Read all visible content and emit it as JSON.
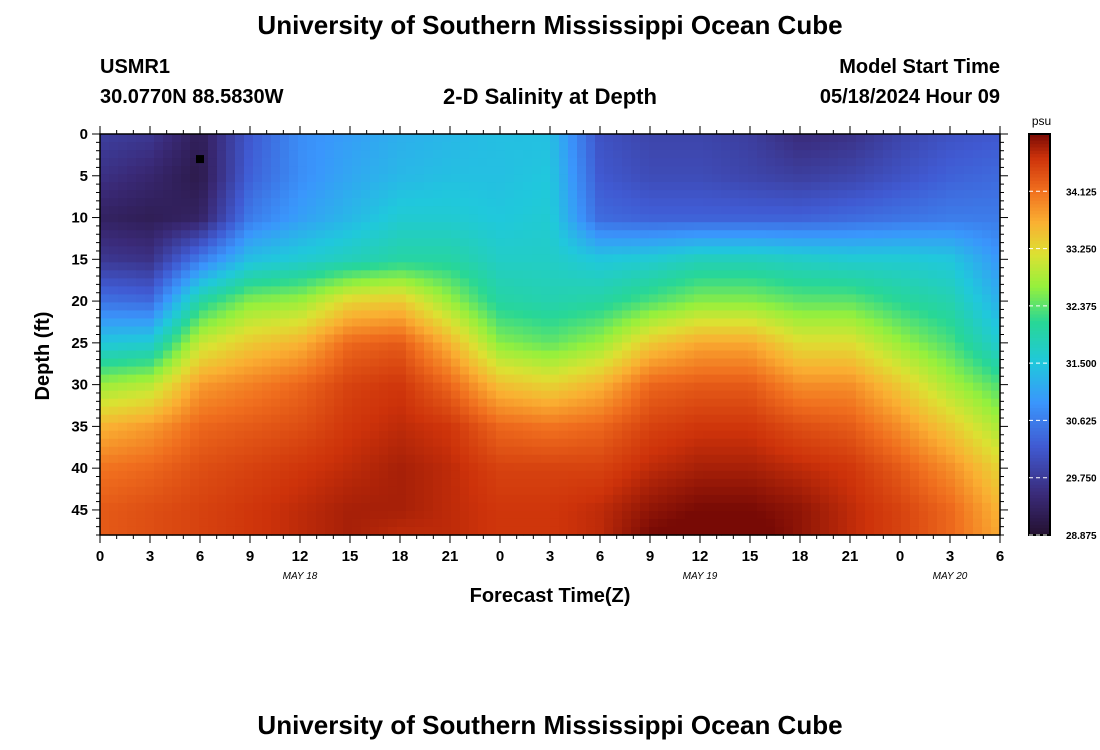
{
  "header": {
    "title": "University of Southern Mississippi Ocean Cube",
    "station": "USMR1",
    "coords": "30.0770N  88.5830W",
    "plot_title": "2-D Salinity at Depth",
    "model_start_label": "Model Start Time",
    "model_start_value": "05/18/2024 Hour 09",
    "footer_title": "University of Southern Mississippi Ocean Cube"
  },
  "chart_data": {
    "type": "heatmap",
    "title": "2-D Salinity at Depth",
    "xlabel": "Forecast Time(Z)",
    "ylabel": "Depth (ft)",
    "x_hours_range": [
      0,
      54
    ],
    "x_tick_labels": [
      "0",
      "3",
      "6",
      "9",
      "12",
      "15",
      "18",
      "21",
      "0",
      "3",
      "6",
      "9",
      "12",
      "15",
      "18",
      "21",
      "0",
      "3",
      "6"
    ],
    "x_date_labels": [
      {
        "label": "MAY 18",
        "hour": 12
      },
      {
        "label": "MAY 19",
        "hour": 36
      },
      {
        "label": "MAY 20",
        "hour": 51
      }
    ],
    "y_range": [
      0,
      48
    ],
    "y_ticks": [
      0,
      5,
      10,
      15,
      20,
      25,
      30,
      35,
      40,
      45
    ],
    "colorbar": {
      "unit": "psu",
      "min": 28.875,
      "max": 35.0,
      "tick_values": [
        34.125,
        33.25,
        32.375,
        31.5,
        30.625,
        29.75,
        28.875
      ],
      "tick_labels": [
        "34.125",
        "33.250",
        "32.375",
        "31.500",
        "30.625",
        "29.750",
        "28.875"
      ]
    },
    "marker": {
      "hour": 6,
      "depth": 3
    },
    "profile_hours": [
      0,
      3,
      6,
      9,
      12,
      15,
      18,
      21,
      24,
      27,
      30,
      33,
      36,
      39,
      42,
      45,
      48,
      51,
      54
    ],
    "profile_depths": [
      0,
      5,
      10,
      15,
      20,
      25,
      30,
      35,
      40,
      45,
      48
    ],
    "salinity": [
      [
        29.8,
        29.6,
        29.3,
        29.7,
        30.5,
        31.5,
        32.7,
        33.6,
        34.1,
        34.3,
        34.3
      ],
      [
        29.7,
        29.4,
        29.2,
        29.6,
        30.4,
        31.6,
        32.9,
        33.8,
        34.2,
        34.4,
        34.4
      ],
      [
        29.2,
        29.1,
        29.3,
        30.6,
        32.0,
        33.0,
        33.8,
        34.2,
        34.4,
        34.5,
        34.5
      ],
      [
        30.2,
        30.3,
        30.6,
        31.4,
        32.6,
        33.4,
        34.0,
        34.3,
        34.5,
        34.6,
        34.6
      ],
      [
        30.8,
        30.8,
        31.0,
        31.6,
        32.7,
        33.6,
        34.2,
        34.4,
        34.6,
        34.7,
        34.7
      ],
      [
        31.0,
        31.1,
        31.3,
        31.8,
        33.3,
        34.2,
        34.5,
        34.6,
        34.7,
        34.8,
        34.8
      ],
      [
        31.2,
        31.3,
        31.6,
        32.0,
        33.4,
        34.3,
        34.6,
        34.7,
        34.8,
        34.8,
        34.7
      ],
      [
        31.3,
        31.4,
        31.6,
        32.0,
        32.7,
        33.6,
        34.2,
        34.6,
        34.7,
        34.7,
        34.7
      ],
      [
        31.4,
        31.4,
        31.5,
        31.7,
        32.0,
        32.6,
        33.5,
        34.2,
        34.5,
        34.6,
        34.6
      ],
      [
        31.4,
        31.5,
        31.6,
        31.7,
        31.9,
        32.4,
        33.3,
        34.1,
        34.5,
        34.6,
        34.6
      ],
      [
        30.1,
        30.2,
        30.4,
        31.5,
        32.0,
        32.7,
        33.6,
        34.2,
        34.5,
        34.7,
        34.7
      ],
      [
        29.9,
        30.0,
        30.3,
        31.6,
        32.3,
        33.4,
        34.2,
        34.5,
        34.7,
        34.9,
        35.0
      ],
      [
        29.9,
        30.0,
        30.3,
        31.8,
        32.6,
        33.7,
        34.3,
        34.6,
        34.8,
        35.0,
        35.1
      ],
      [
        29.8,
        29.9,
        30.3,
        31.8,
        32.6,
        33.7,
        34.3,
        34.6,
        34.8,
        35.0,
        35.1
      ],
      [
        29.5,
        29.8,
        30.3,
        31.7,
        32.4,
        33.2,
        33.9,
        34.4,
        34.7,
        34.9,
        34.9
      ],
      [
        29.6,
        29.9,
        30.4,
        31.6,
        32.4,
        33.2,
        33.9,
        34.3,
        34.6,
        34.7,
        34.7
      ],
      [
        29.9,
        30.1,
        30.5,
        31.6,
        32.1,
        32.7,
        33.4,
        33.9,
        34.3,
        34.5,
        34.5
      ],
      [
        30.1,
        30.3,
        30.6,
        31.5,
        31.9,
        32.3,
        32.8,
        33.4,
        33.9,
        34.2,
        34.2
      ],
      [
        30.2,
        30.4,
        30.6,
        30.9,
        31.2,
        31.6,
        32.3,
        32.8,
        33.3,
        33.6,
        33.7
      ]
    ]
  }
}
